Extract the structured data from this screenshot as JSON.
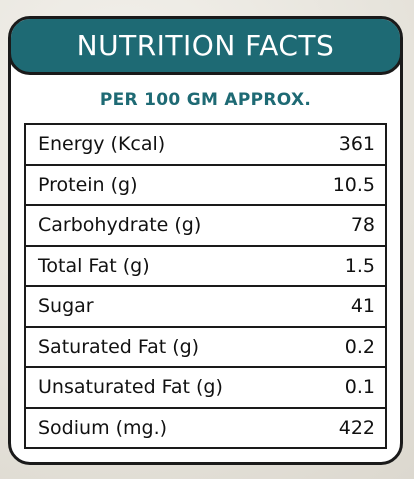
{
  "header": {
    "title": "NUTRITION FACTS"
  },
  "subtitle": "PER 100 GM APPROX.",
  "colors": {
    "accent": "#1e6a74",
    "border": "#1a1a1a",
    "background": "#ffffff"
  },
  "rows": [
    {
      "label": "Energy (Kcal)",
      "value": "361"
    },
    {
      "label": "Protein (g)",
      "value": "10.5"
    },
    {
      "label": "Carbohydrate (g)",
      "value": "78"
    },
    {
      "label": "Total Fat (g)",
      "value": "1.5"
    },
    {
      "label": "Sugar",
      "value": "41"
    },
    {
      "label": "Saturated Fat (g)",
      "value": "0.2"
    },
    {
      "label": "Unsaturated Fat (g)",
      "value": "0.1"
    },
    {
      "label": "Sodium (mg.)",
      "value": "422"
    }
  ]
}
